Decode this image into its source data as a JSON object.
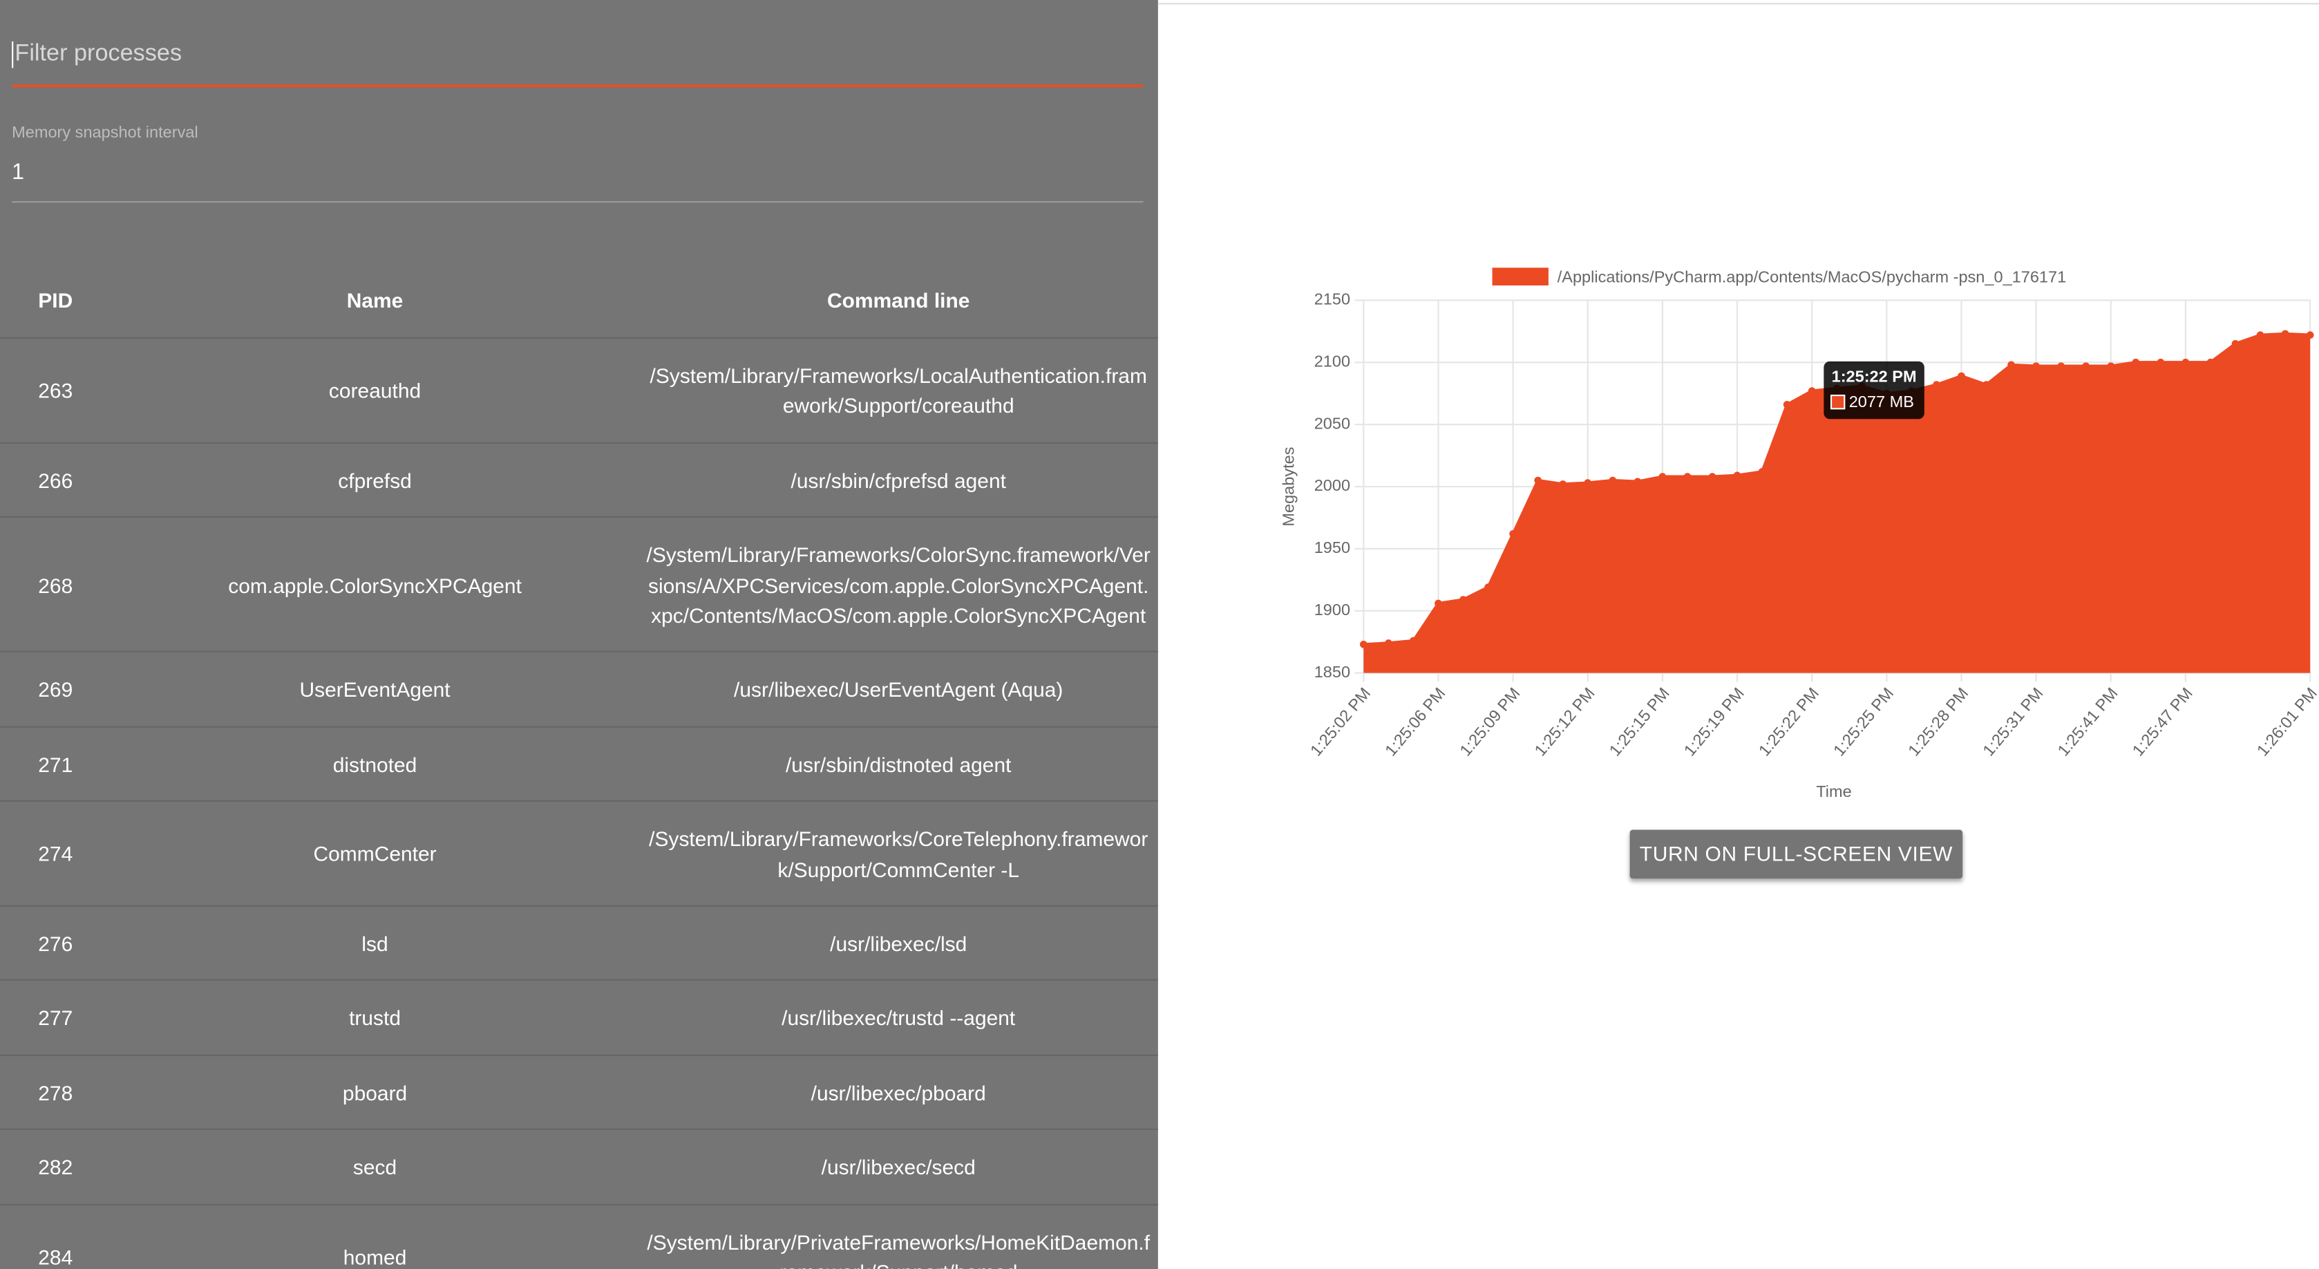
{
  "filter": {
    "placeholder": "Filter processes"
  },
  "interval": {
    "label": "Memory snapshot interval",
    "value": "1"
  },
  "table": {
    "columns": [
      "PID",
      "Name",
      "Command line"
    ],
    "rows": [
      [
        "263",
        "coreauthd",
        "/System/Library/Frameworks/LocalAuthentication.framework/Support/coreauthd"
      ],
      [
        "266",
        "cfprefsd",
        "/usr/sbin/cfprefsd agent"
      ],
      [
        "268",
        "com.apple.ColorSyncXPCAgent",
        "/System/Library/Frameworks/ColorSync.framework/Versions/A/XPCServices/com.apple.ColorSyncXPCAgent.xpc/Contents/MacOS/com.apple.ColorSyncXPCAgent"
      ],
      [
        "269",
        "UserEventAgent",
        "/usr/libexec/UserEventAgent (Aqua)"
      ],
      [
        "271",
        "distnoted",
        "/usr/sbin/distnoted agent"
      ],
      [
        "274",
        "CommCenter",
        "/System/Library/Frameworks/CoreTelephony.framework/Support/CommCenter -L"
      ],
      [
        "276",
        "lsd",
        "/usr/libexec/lsd"
      ],
      [
        "277",
        "trustd",
        "/usr/libexec/trustd --agent"
      ],
      [
        "278",
        "pboard",
        "/usr/libexec/pboard"
      ],
      [
        "282",
        "secd",
        "/usr/libexec/secd"
      ],
      [
        "284",
        "homed",
        "/System/Library/PrivateFrameworks/HomeKitDaemon.framework/Support/homed"
      ]
    ]
  },
  "chart_data": {
    "type": "area",
    "x_label": "Time",
    "y_label": "Megabytes",
    "categories": [
      "1:25:02 PM",
      null,
      null,
      "1:25:06 PM",
      null,
      null,
      "1:25:09 PM",
      null,
      null,
      "1:25:12 PM",
      null,
      null,
      "1:25:15 PM",
      null,
      null,
      "1:25:19 PM",
      null,
      null,
      "1:25:22 PM",
      null,
      null,
      "1:25:25 PM",
      null,
      null,
      "1:25:28 PM",
      null,
      null,
      "1:25:31 PM",
      null,
      null,
      "1:25:41 PM",
      null,
      null,
      "1:25:47 PM",
      null,
      null,
      null,
      null,
      "1:26:01 PM"
    ],
    "series": [
      {
        "name": "/Applications/PyCharm.app/Contents/MacOS/pycharm -psn_0_176171",
        "color": "#ec4a23",
        "values": [
          1873,
          1874,
          1876,
          1906,
          1909,
          1919,
          1962,
          2005,
          2002,
          2003,
          2005,
          2004,
          2008,
          2008,
          2008,
          2009,
          2012,
          2066,
          2077,
          2079,
          2081,
          2075,
          2077,
          2082,
          2089,
          2082,
          2098,
          2097,
          2097,
          2097,
          2097,
          2100,
          2100,
          2100,
          2100,
          2115,
          2122,
          2123,
          2122
        ]
      }
    ],
    "ylim": [
      1850,
      2150
    ],
    "yticks": [
      1850,
      1900,
      1950,
      2000,
      2050,
      2100,
      2150
    ],
    "grid": true,
    "legend": "top",
    "tooltip": {
      "x": "1:25:22 PM",
      "label": "2077 MB"
    }
  },
  "button": {
    "label": "TURN ON FULL-SCREEN VIEW"
  }
}
